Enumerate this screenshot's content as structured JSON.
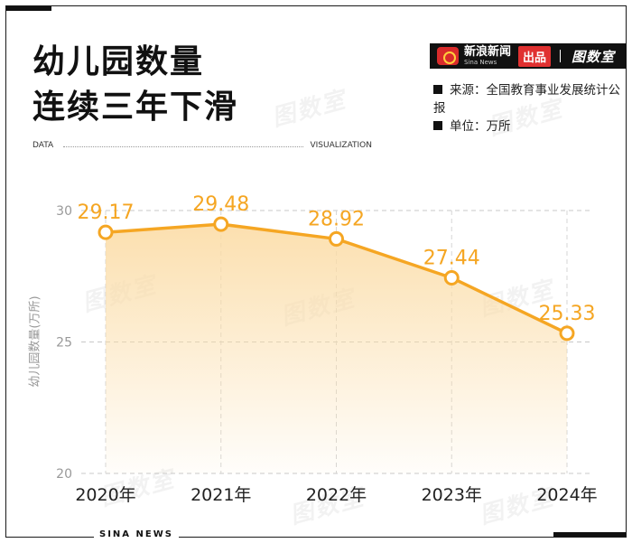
{
  "title_line1": "幼儿园数量",
  "title_line2": "连续三年下滑",
  "brand": {
    "name_cn": "新浪新闻",
    "name_en": "Sina News",
    "badge": "出品",
    "product": "图数室"
  },
  "source": "来源：全国教育事业发展统计公报",
  "unit": "单位：万所",
  "sub_left": "DATA",
  "sub_right": "VISUALIZATION",
  "footer": "SINA NEWS",
  "watermark": "图数室",
  "colors": {
    "line": "#f5a623",
    "label": "#f5a623",
    "fill_top": "#fbdca6",
    "axis_text": "#999999",
    "title": "#111111"
  },
  "chart_data": {
    "type": "area",
    "categories": [
      "2020年",
      "2021年",
      "2022年",
      "2023年",
      "2024年"
    ],
    "values": [
      29.17,
      29.48,
      28.92,
      27.44,
      25.33
    ],
    "data_labels": [
      "29.17",
      "29.48",
      "28.92",
      "27.44",
      "25.33"
    ],
    "ylabel": "幼儿园数量(万所)",
    "ylim": [
      20,
      30
    ],
    "yticks": [
      20,
      25,
      30
    ],
    "grid": true
  }
}
